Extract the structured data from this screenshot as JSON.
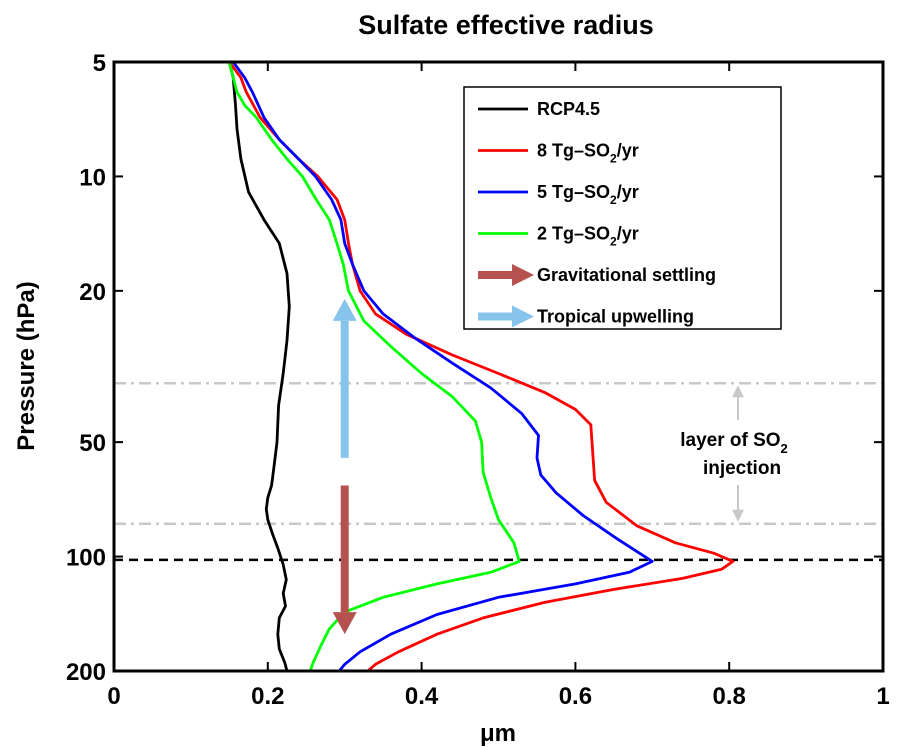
{
  "chart_data": {
    "type": "line",
    "title": "Sulfate effective radius",
    "xlabel": "μm",
    "ylabel": "Pressure (hPa)",
    "xlim": [
      0,
      1
    ],
    "ylim": [
      5,
      200
    ],
    "y_scale": "log",
    "y_reversed": true,
    "x_ticks": [
      "0",
      "0.2",
      "0.4",
      "0.6",
      "0.8",
      "1"
    ],
    "x_tick_values": [
      0,
      0.2,
      0.4,
      0.6,
      0.8,
      1
    ],
    "y_ticks": [
      "5",
      "10",
      "20",
      "50",
      "100",
      "200"
    ],
    "y_tick_values": [
      5,
      10,
      20,
      50,
      100,
      200
    ],
    "grid": false,
    "legend_position": "top-right",
    "series": [
      {
        "name": "RCP4.5",
        "color": "#000000",
        "points": [
          [
            0.15,
            5.0
          ],
          [
            0.155,
            5.5
          ],
          [
            0.158,
            6.5
          ],
          [
            0.16,
            7.5
          ],
          [
            0.165,
            9
          ],
          [
            0.175,
            11
          ],
          [
            0.195,
            13
          ],
          [
            0.215,
            15
          ],
          [
            0.225,
            18
          ],
          [
            0.228,
            22
          ],
          [
            0.225,
            27
          ],
          [
            0.22,
            33
          ],
          [
            0.214,
            40
          ],
          [
            0.212,
            50
          ],
          [
            0.208,
            58
          ],
          [
            0.205,
            65
          ],
          [
            0.2,
            70
          ],
          [
            0.198,
            75
          ],
          [
            0.2,
            80
          ],
          [
            0.206,
            87
          ],
          [
            0.213,
            95
          ],
          [
            0.22,
            105
          ],
          [
            0.224,
            115
          ],
          [
            0.22,
            125
          ],
          [
            0.223,
            135
          ],
          [
            0.215,
            145
          ],
          [
            0.213,
            160
          ],
          [
            0.215,
            175
          ],
          [
            0.222,
            190
          ],
          [
            0.225,
            200
          ]
        ]
      },
      {
        "name": "8 Tg–SO₂/yr",
        "color": "#ff0000",
        "points": [
          [
            0.15,
            5.0
          ],
          [
            0.165,
            5.5
          ],
          [
            0.172,
            6.0
          ],
          [
            0.19,
            7.0
          ],
          [
            0.215,
            8.0
          ],
          [
            0.24,
            9.0
          ],
          [
            0.265,
            10.0
          ],
          [
            0.29,
            11.5
          ],
          [
            0.3,
            13.0
          ],
          [
            0.305,
            15.0
          ],
          [
            0.31,
            17.0
          ],
          [
            0.32,
            20.0
          ],
          [
            0.34,
            23.0
          ],
          [
            0.38,
            26.0
          ],
          [
            0.44,
            29.5
          ],
          [
            0.5,
            33.0
          ],
          [
            0.56,
            37.0
          ],
          [
            0.6,
            41.0
          ],
          [
            0.62,
            45.0
          ],
          [
            0.623,
            55.0
          ],
          [
            0.625,
            63.0
          ],
          [
            0.64,
            72.0
          ],
          [
            0.68,
            83.0
          ],
          [
            0.73,
            92.0
          ],
          [
            0.78,
            98.0
          ],
          [
            0.805,
            103.0
          ],
          [
            0.79,
            108.0
          ],
          [
            0.74,
            114.0
          ],
          [
            0.65,
            122.0
          ],
          [
            0.56,
            132.0
          ],
          [
            0.48,
            145.0
          ],
          [
            0.42,
            160.0
          ],
          [
            0.37,
            178.0
          ],
          [
            0.34,
            192.0
          ],
          [
            0.33,
            200.0
          ]
        ]
      },
      {
        "name": "5 Tg–SO₂/yr",
        "color": "#0000ff",
        "points": [
          [
            0.155,
            5.0
          ],
          [
            0.17,
            5.5
          ],
          [
            0.18,
            6.0
          ],
          [
            0.195,
            7.0
          ],
          [
            0.215,
            8.0
          ],
          [
            0.24,
            9.0
          ],
          [
            0.262,
            10.0
          ],
          [
            0.283,
            11.5
          ],
          [
            0.295,
            13.0
          ],
          [
            0.3,
            15.0
          ],
          [
            0.31,
            17.0
          ],
          [
            0.325,
            20.0
          ],
          [
            0.35,
            23.0
          ],
          [
            0.39,
            26.5
          ],
          [
            0.44,
            31.0
          ],
          [
            0.49,
            36.0
          ],
          [
            0.53,
            42.0
          ],
          [
            0.552,
            48.0
          ],
          [
            0.55,
            55.0
          ],
          [
            0.555,
            61.0
          ],
          [
            0.575,
            68.0
          ],
          [
            0.61,
            78.0
          ],
          [
            0.655,
            90.0
          ],
          [
            0.7,
            103.0
          ],
          [
            0.67,
            110.0
          ],
          [
            0.6,
            118.0
          ],
          [
            0.5,
            128.0
          ],
          [
            0.42,
            142.0
          ],
          [
            0.36,
            160.0
          ],
          [
            0.32,
            178.0
          ],
          [
            0.3,
            192.0
          ],
          [
            0.293,
            200.0
          ]
        ]
      },
      {
        "name": "2 Tg–SO₂/yr",
        "color": "#00ff00",
        "points": [
          [
            0.15,
            5.0
          ],
          [
            0.155,
            5.5
          ],
          [
            0.16,
            6.0
          ],
          [
            0.17,
            6.5
          ],
          [
            0.185,
            7.0
          ],
          [
            0.205,
            8.0
          ],
          [
            0.225,
            9.0
          ],
          [
            0.245,
            10.0
          ],
          [
            0.263,
            11.5
          ],
          [
            0.28,
            13.0
          ],
          [
            0.29,
            15.0
          ],
          [
            0.298,
            17.0
          ],
          [
            0.305,
            20.0
          ],
          [
            0.325,
            24.0
          ],
          [
            0.36,
            28.0
          ],
          [
            0.4,
            33.0
          ],
          [
            0.44,
            38.0
          ],
          [
            0.47,
            44.0
          ],
          [
            0.478,
            50.0
          ],
          [
            0.48,
            60.0
          ],
          [
            0.49,
            70.0
          ],
          [
            0.5,
            80.0
          ],
          [
            0.52,
            92.0
          ],
          [
            0.527,
            103.0
          ],
          [
            0.49,
            110.0
          ],
          [
            0.42,
            118.0
          ],
          [
            0.35,
            128.0
          ],
          [
            0.3,
            140.0
          ],
          [
            0.28,
            155.0
          ],
          [
            0.27,
            170.0
          ],
          [
            0.26,
            188.0
          ],
          [
            0.255,
            200.0
          ]
        ]
      }
    ],
    "legend_arrows": [
      {
        "label": "Gravitational settling",
        "color": "#b5524f"
      },
      {
        "label": "Tropical upwelling",
        "color": "#87c4ec"
      }
    ],
    "arrows": [
      {
        "name": "Tropical upwelling",
        "color": "#87c4ec",
        "x": 0.3,
        "from_p": 55,
        "to_p": 21
      },
      {
        "name": "Gravitational settling",
        "color": "#b5524f",
        "x": 0.3,
        "from_p": 65,
        "to_p": 160
      }
    ],
    "reference_lines": [
      {
        "p": 102,
        "style": "dashed",
        "color": "#000000"
      },
      {
        "p": 35,
        "style": "dashdot",
        "color": "#c8c8c8"
      },
      {
        "p": 82,
        "style": "dashdot",
        "color": "#c8c8c8"
      }
    ],
    "annotation": {
      "line1_pre": "layer of SO",
      "line1_sub": "2",
      "line2": "injection",
      "color": "#c8c8c8"
    }
  }
}
